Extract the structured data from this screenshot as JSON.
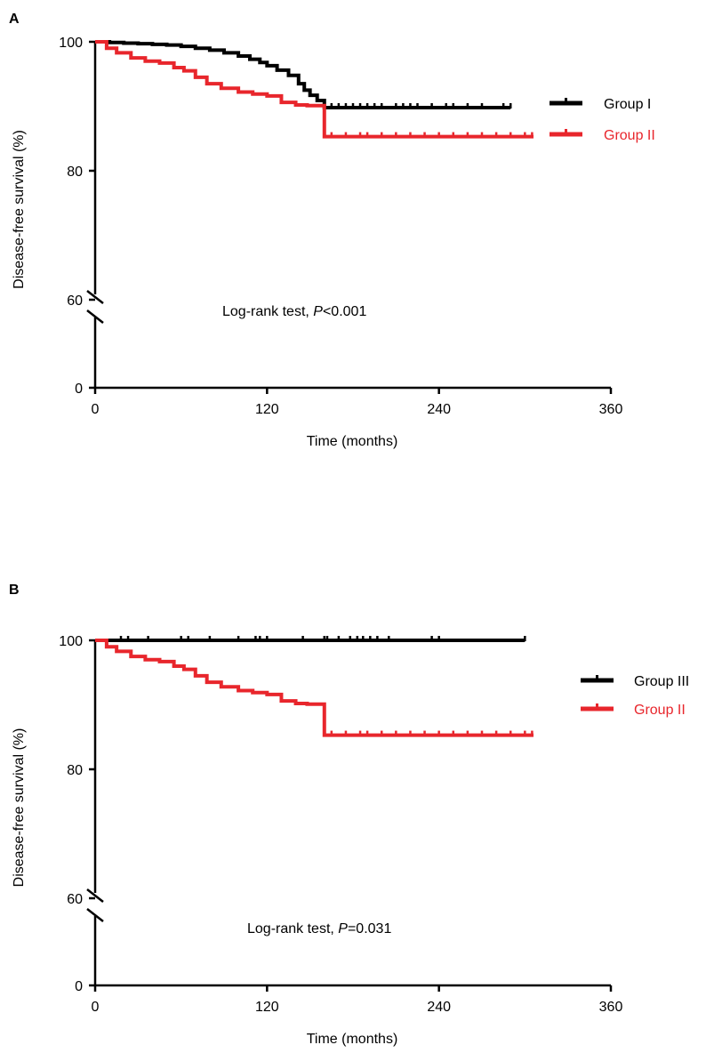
{
  "chart_data": [
    {
      "panel_label": "A",
      "type": "line",
      "xlabel": "Time (months)",
      "ylabel": "Disease-free survival (%)",
      "xlim": [
        0,
        360
      ],
      "x_ticks": [
        "0",
        "120",
        "240",
        "360"
      ],
      "y_ticks": [
        "0",
        "60",
        "80",
        "100"
      ],
      "y_axis_break": "between 0 and 60",
      "annotation": {
        "prefix": "Log-rank test, ",
        "italic": "P",
        "suffix": "<0.001"
      },
      "legend_position": "right",
      "series": [
        {
          "name": "Group I",
          "color": "#000000",
          "x": [
            0,
            10,
            20,
            30,
            40,
            50,
            60,
            70,
            80,
            90,
            100,
            108,
            115,
            120,
            127,
            135,
            142,
            146,
            150,
            155,
            160,
            200,
            240,
            290
          ],
          "y": [
            100,
            99.9,
            99.8,
            99.7,
            99.6,
            99.5,
            99.3,
            99,
            98.7,
            98.3,
            97.8,
            97.3,
            96.8,
            96.3,
            95.6,
            94.8,
            93.5,
            92.5,
            91.7,
            90.9,
            89.8,
            89.8,
            89.8,
            89.8
          ],
          "censor_x": [
            150,
            165,
            170,
            175,
            180,
            185,
            190,
            195,
            200,
            210,
            215,
            220,
            225,
            235,
            245,
            250,
            260,
            270,
            285,
            290
          ]
        },
        {
          "name": "Group II",
          "color": "#e8262c",
          "x": [
            0,
            8,
            15,
            25,
            35,
            45,
            55,
            62,
            70,
            78,
            88,
            100,
            110,
            120,
            130,
            140,
            148,
            160,
            200,
            240,
            306
          ],
          "y": [
            100,
            99,
            98.3,
            97.5,
            97,
            96.7,
            96,
            95.5,
            94.5,
            93.5,
            92.8,
            92.2,
            91.9,
            91.6,
            90.6,
            90.2,
            90.1,
            85.3,
            85.3,
            85.3,
            85.3
          ],
          "censor_x": [
            165,
            175,
            185,
            190,
            200,
            210,
            220,
            230,
            240,
            250,
            260,
            270,
            280,
            290,
            300,
            305
          ]
        }
      ]
    },
    {
      "panel_label": "B",
      "type": "line",
      "xlabel": "Time (months)",
      "ylabel": "Disease-free survival (%)",
      "xlim": [
        0,
        360
      ],
      "x_ticks": [
        "0",
        "120",
        "240",
        "360"
      ],
      "y_ticks": [
        "0",
        "60",
        "80",
        "100"
      ],
      "y_axis_break": "between 0 and 60",
      "annotation": {
        "prefix": "Log-rank test, ",
        "italic": "P",
        "suffix": "=0.031"
      },
      "legend_position": "right",
      "series": [
        {
          "name": "Group III",
          "color": "#000000",
          "x": [
            0,
            300
          ],
          "y": [
            100,
            100
          ],
          "censor_x": [
            18,
            23,
            37,
            60,
            65,
            80,
            100,
            112,
            115,
            120,
            145,
            160,
            162,
            170,
            178,
            183,
            187,
            192,
            197,
            205,
            235,
            240,
            300
          ]
        },
        {
          "name": "Group II",
          "color": "#e8262c",
          "x": [
            0,
            8,
            15,
            25,
            35,
            45,
            55,
            62,
            70,
            78,
            88,
            100,
            110,
            120,
            130,
            140,
            148,
            160,
            200,
            240,
            306
          ],
          "y": [
            100,
            99,
            98.3,
            97.5,
            97,
            96.7,
            96,
            95.5,
            94.5,
            93.5,
            92.8,
            92.2,
            91.9,
            91.6,
            90.6,
            90.2,
            90.1,
            85.3,
            85.3,
            85.3,
            85.3
          ],
          "censor_x": [
            165,
            175,
            185,
            190,
            200,
            210,
            220,
            230,
            240,
            250,
            260,
            270,
            280,
            290,
            300,
            305
          ]
        }
      ]
    }
  ]
}
